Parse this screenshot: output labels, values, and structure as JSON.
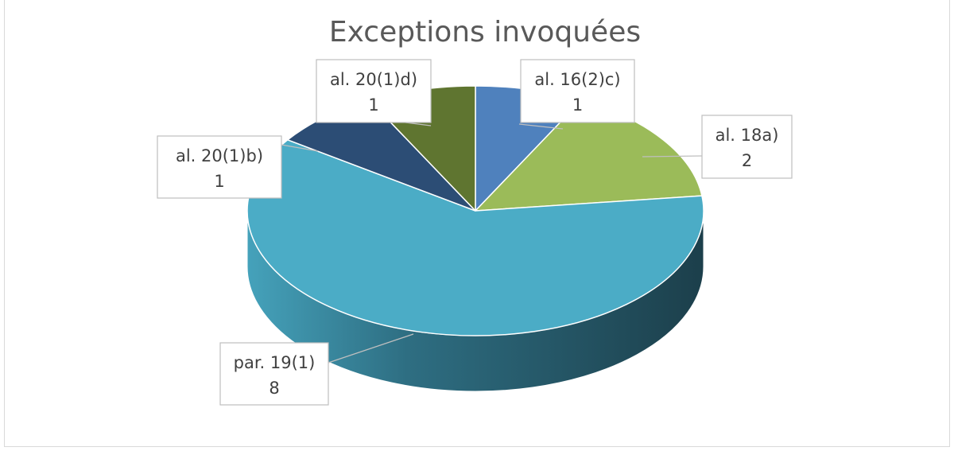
{
  "chart_data": {
    "type": "pie",
    "style": "3d",
    "title": "Exceptions invoquées",
    "slices": [
      {
        "label": "al. 16(2)c)",
        "value": 1,
        "color": "#4f81bd"
      },
      {
        "label": "al. 18a)",
        "value": 2,
        "color": "#9bbb59"
      },
      {
        "label": "par. 19(1)",
        "value": 8,
        "color": "#4bacc6"
      },
      {
        "label": "al. 20(1)b)",
        "value": 1,
        "color": "#2c4d75"
      },
      {
        "label": "al. 20(1)d)",
        "value": 1,
        "color": "#5f7530"
      }
    ]
  }
}
